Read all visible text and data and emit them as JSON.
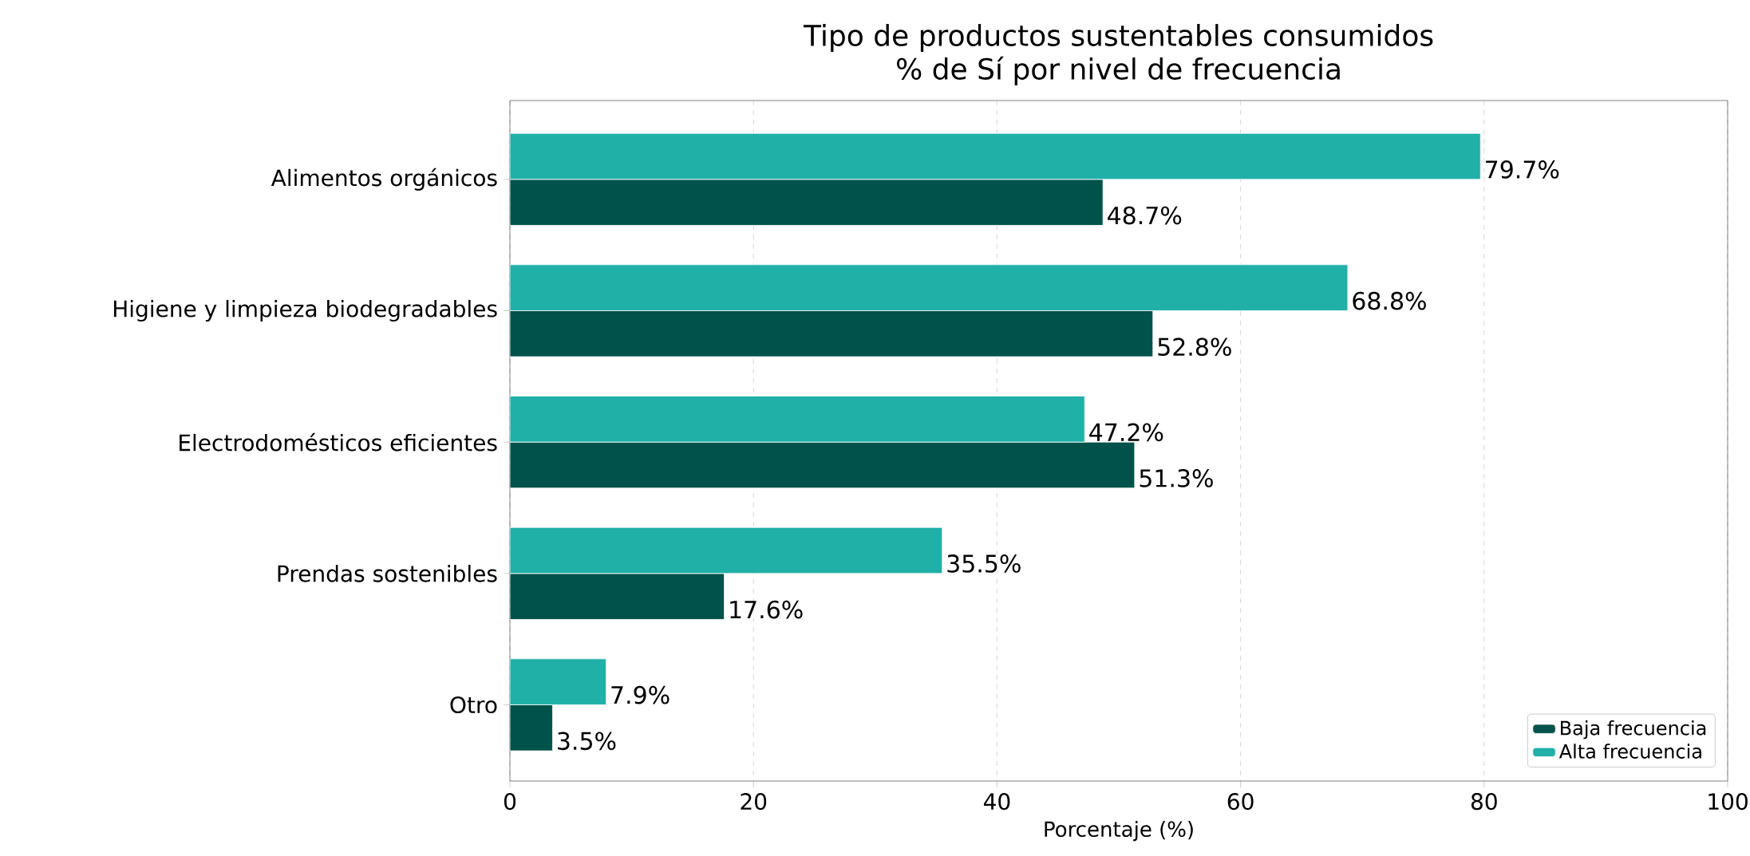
{
  "chart_data": {
    "type": "bar",
    "orientation": "horizontal",
    "title": "Tipo de productos sustentables consumidos\n% de Sí por nivel de frecuencia",
    "xlabel": "Porcentaje (%)",
    "categories": [
      "Alimentos orgánicos",
      "Higiene y limpieza biodegradables",
      "Electrodomésticos eficientes",
      "Prendas sostenibles",
      "Otro"
    ],
    "series": [
      {
        "name": "Baja frecuencia",
        "color": "#00524a",
        "values": [
          48.7,
          52.8,
          51.3,
          17.6,
          3.5
        ],
        "value_labels": [
          "48.7%",
          "52.8%",
          "51.3%",
          "17.6%",
          "3.5%"
        ]
      },
      {
        "name": "Alta frecuencia",
        "color": "#20b0a8",
        "values": [
          79.7,
          68.8,
          47.2,
          35.5,
          7.9
        ],
        "value_labels": [
          "79.7%",
          "68.8%",
          "47.2%",
          "35.5%",
          "7.9%"
        ]
      }
    ],
    "xlim": [
      0,
      100
    ],
    "xticks": [
      0,
      20,
      40,
      60,
      80,
      100
    ],
    "grid": "x",
    "legend": "bottom right"
  }
}
